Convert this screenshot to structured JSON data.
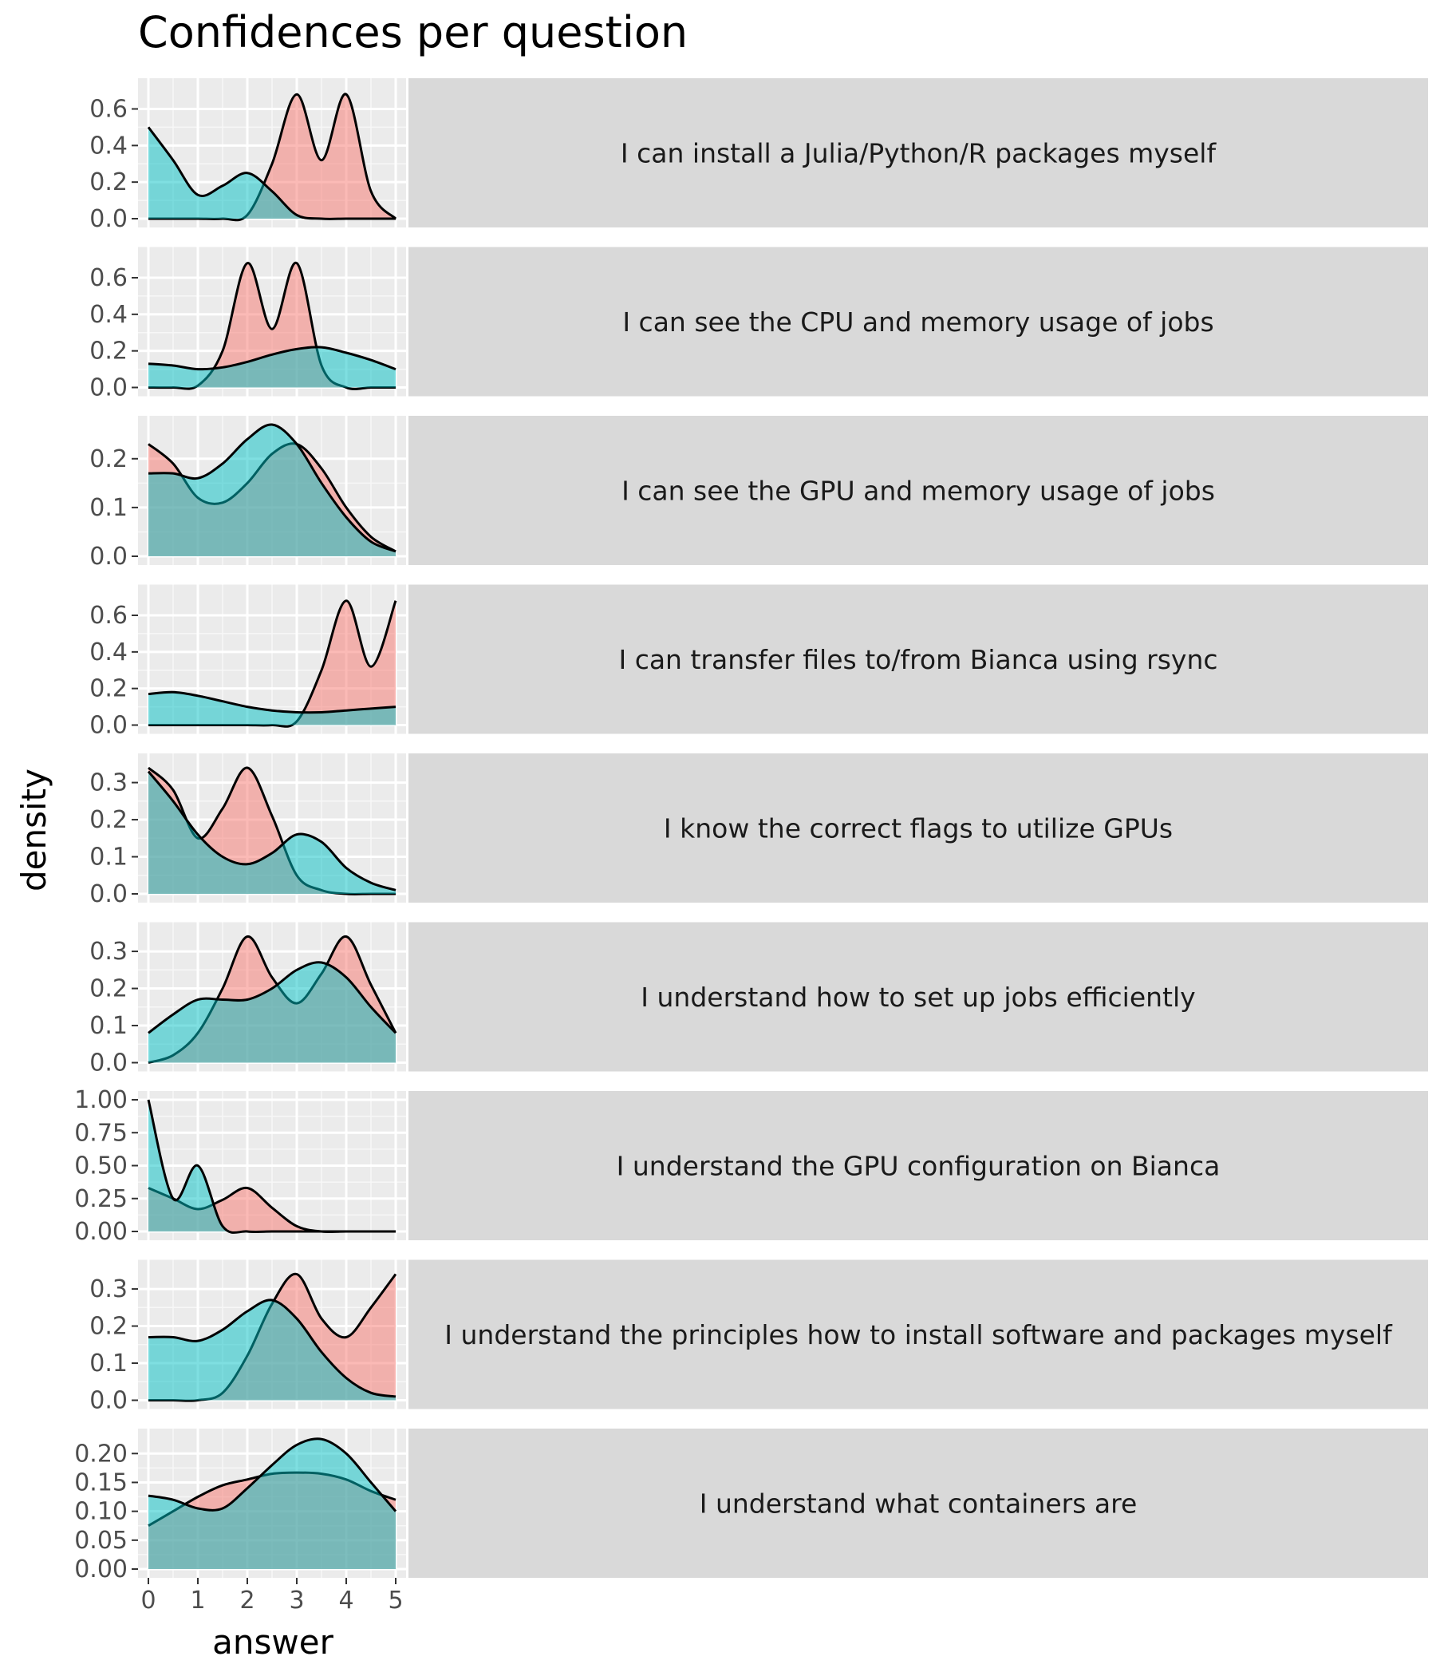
{
  "chart_data": {
    "type": "area",
    "subtype": "faceted density",
    "title": "Confidences per question",
    "xlabel": "answer",
    "ylabel": "density",
    "xlim": [
      0,
      5
    ],
    "x_ticks": [
      "0",
      "1",
      "2",
      "3",
      "4",
      "5"
    ],
    "grid": true,
    "legend": "none",
    "series_colors": [
      "#F8766D",
      "#00BFC4"
    ],
    "x": [
      0,
      0.5,
      1,
      1.5,
      2,
      2.5,
      3,
      3.5,
      4,
      4.5,
      5
    ],
    "facets": [
      {
        "label": "I can install a Julia/Python/R packages myself",
        "y_ticks": [
          "0.0",
          "0.2",
          "0.4",
          "0.6"
        ],
        "ylim": [
          0,
          0.72
        ],
        "series": [
          {
            "values": [
              0.0,
              0.0,
              0.0,
              0.0,
              0.02,
              0.3,
              0.68,
              0.32,
              0.68,
              0.15,
              0.0
            ]
          },
          {
            "values": [
              0.5,
              0.32,
              0.13,
              0.18,
              0.25,
              0.15,
              0.02,
              0.0,
              0.0,
              0.0,
              0.0
            ]
          }
        ]
      },
      {
        "label": "I can see the CPU and memory usage of jobs",
        "y_ticks": [
          "0.0",
          "0.2",
          "0.4",
          "0.6"
        ],
        "ylim": [
          0,
          0.72
        ],
        "series": [
          {
            "values": [
              0.0,
              0.0,
              0.01,
              0.2,
              0.68,
              0.32,
              0.68,
              0.12,
              0.0,
              0.0,
              0.0
            ]
          },
          {
            "values": [
              0.13,
              0.12,
              0.1,
              0.11,
              0.14,
              0.18,
              0.21,
              0.22,
              0.19,
              0.15,
              0.1
            ]
          }
        ]
      },
      {
        "label": "I can see the GPU and memory usage of jobs",
        "y_ticks": [
          "0.0",
          "0.1",
          "0.2"
        ],
        "ylim": [
          0,
          0.27
        ],
        "series": [
          {
            "values": [
              0.23,
              0.19,
              0.12,
              0.11,
              0.15,
              0.21,
              0.23,
              0.18,
              0.1,
              0.04,
              0.01
            ]
          },
          {
            "values": [
              0.17,
              0.17,
              0.16,
              0.19,
              0.24,
              0.27,
              0.23,
              0.15,
              0.08,
              0.03,
              0.01
            ]
          }
        ]
      },
      {
        "label": "I can transfer files to/from Bianca using rsync",
        "y_ticks": [
          "0.0",
          "0.2",
          "0.4",
          "0.6"
        ],
        "ylim": [
          0,
          0.72
        ],
        "series": [
          {
            "values": [
              0.0,
              0.0,
              0.0,
              0.0,
              0.0,
              0.0,
              0.02,
              0.3,
              0.68,
              0.32,
              0.68
            ]
          },
          {
            "values": [
              0.17,
              0.18,
              0.16,
              0.13,
              0.1,
              0.08,
              0.07,
              0.07,
              0.08,
              0.09,
              0.1
            ]
          }
        ]
      },
      {
        "label": "I know the correct flags to utilize GPUs",
        "y_ticks": [
          "0.0",
          "0.1",
          "0.2",
          "0.3"
        ],
        "ylim": [
          0,
          0.355
        ],
        "series": [
          {
            "values": [
              0.34,
              0.28,
              0.15,
              0.23,
              0.34,
              0.21,
              0.05,
              0.01,
              0.0,
              0.0,
              0.0
            ]
          },
          {
            "values": [
              0.33,
              0.25,
              0.16,
              0.1,
              0.08,
              0.11,
              0.16,
              0.14,
              0.07,
              0.03,
              0.01
            ]
          }
        ]
      },
      {
        "label": "I understand how to set up jobs efficiently",
        "y_ticks": [
          "0.0",
          "0.1",
          "0.2",
          "0.3"
        ],
        "ylim": [
          0,
          0.355
        ],
        "series": [
          {
            "values": [
              0.0,
              0.02,
              0.08,
              0.2,
              0.34,
              0.23,
              0.16,
              0.24,
              0.34,
              0.21,
              0.08
            ]
          },
          {
            "values": [
              0.08,
              0.13,
              0.17,
              0.17,
              0.17,
              0.2,
              0.25,
              0.27,
              0.23,
              0.15,
              0.08
            ]
          }
        ]
      },
      {
        "label": "I understand the GPU configuration on Bianca",
        "y_ticks": [
          "0.00",
          "0.25",
          "0.50",
          "0.75",
          "1.00"
        ],
        "ylim": [
          0,
          1.0
        ],
        "series": [
          {
            "values": [
              0.33,
              0.25,
              0.17,
              0.24,
              0.33,
              0.18,
              0.04,
              0.0,
              0.0,
              0.0,
              0.0
            ]
          },
          {
            "values": [
              1.0,
              0.25,
              0.5,
              0.04,
              0.0,
              0.0,
              0.0,
              0.0,
              0.0,
              0.0,
              0.0
            ]
          }
        ]
      },
      {
        "label": "I understand the principles how to install software and packages myself",
        "y_ticks": [
          "0.0",
          "0.1",
          "0.2",
          "0.3"
        ],
        "ylim": [
          0,
          0.355
        ],
        "series": [
          {
            "values": [
              0.0,
              0.0,
              0.0,
              0.02,
              0.12,
              0.26,
              0.34,
              0.22,
              0.17,
              0.25,
              0.34
            ]
          },
          {
            "values": [
              0.17,
              0.17,
              0.16,
              0.19,
              0.24,
              0.27,
              0.22,
              0.13,
              0.06,
              0.02,
              0.01
            ]
          }
        ]
      },
      {
        "label": "I understand what containers are",
        "y_ticks": [
          "0.00",
          "0.05",
          "0.10",
          "0.15",
          "0.20"
        ],
        "ylim": [
          0,
          0.228
        ],
        "series": [
          {
            "values": [
              0.075,
              0.1,
              0.125,
              0.145,
              0.155,
              0.165,
              0.167,
              0.165,
              0.155,
              0.135,
              0.12
            ]
          },
          {
            "values": [
              0.127,
              0.12,
              0.105,
              0.105,
              0.14,
              0.18,
              0.215,
              0.225,
              0.2,
              0.15,
              0.1
            ]
          }
        ]
      }
    ]
  }
}
